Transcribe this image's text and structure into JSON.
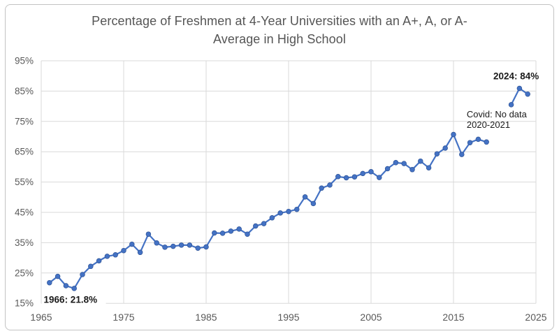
{
  "chart_data": {
    "type": "line",
    "title": "Percentage of Freshmen at 4-Year Universities with an A+, A, or A- Average in High School",
    "title_lines": [
      "Percentage of Freshmen at 4-Year Universities with an A+, A, or A-",
      "Average in High School"
    ],
    "xlabel": "",
    "ylabel": "",
    "xlim": [
      1965,
      2025
    ],
    "ylim": [
      15,
      95
    ],
    "grid": true,
    "legend": "none",
    "gap_years": [
      2020,
      2021
    ],
    "years": [
      1966,
      1967,
      1968,
      1969,
      1970,
      1971,
      1972,
      1973,
      1974,
      1975,
      1976,
      1977,
      1978,
      1979,
      1980,
      1981,
      1982,
      1983,
      1984,
      1985,
      1986,
      1987,
      1988,
      1989,
      1990,
      1991,
      1992,
      1993,
      1994,
      1995,
      1996,
      1997,
      1998,
      1999,
      2000,
      2001,
      2002,
      2003,
      2004,
      2005,
      2006,
      2007,
      2008,
      2009,
      2010,
      2011,
      2012,
      2013,
      2014,
      2015,
      2016,
      2017,
      2018,
      2019,
      2022,
      2023,
      2024
    ],
    "values": [
      21.8,
      23.9,
      20.8,
      19.9,
      24.5,
      27.2,
      29.0,
      30.5,
      31.0,
      32.4,
      34.5,
      31.8,
      37.8,
      34.9,
      33.5,
      33.8,
      34.2,
      34.2,
      33.2,
      33.6,
      38.2,
      38.1,
      38.8,
      39.5,
      37.8,
      40.5,
      41.3,
      43.2,
      44.8,
      45.3,
      46.0,
      50.1,
      47.9,
      53.0,
      54.0,
      56.8,
      56.4,
      56.7,
      57.8,
      58.4,
      56.5,
      59.4,
      61.4,
      61.1,
      59.1,
      61.9,
      59.7,
      64.3,
      66.2,
      70.7,
      64.1,
      68.0,
      69.1,
      68.2,
      80.5,
      85.9,
      84.0
    ],
    "yticks": [
      {
        "value": 95,
        "label": "95%"
      },
      {
        "value": 85,
        "label": "85%"
      },
      {
        "value": 75,
        "label": "75%"
      },
      {
        "value": 65,
        "label": "65%"
      },
      {
        "value": 55,
        "label": "55%"
      },
      {
        "value": 45,
        "label": "45%"
      },
      {
        "value": 35,
        "label": "35%"
      },
      {
        "value": 25,
        "label": "25%"
      },
      {
        "value": 15,
        "label": "15%"
      }
    ],
    "xticks": [
      {
        "value": 1965,
        "label": "1965"
      },
      {
        "value": 1975,
        "label": "1975"
      },
      {
        "value": 1985,
        "label": "1985"
      },
      {
        "value": 1995,
        "label": "1995"
      },
      {
        "value": 2005,
        "label": "2005"
      },
      {
        "value": 2015,
        "label": "2015"
      },
      {
        "value": 2025,
        "label": "2025"
      }
    ],
    "annotations": [
      {
        "name": "annotation-1966",
        "text": "1966: 21.8%",
        "bold": true,
        "year": 1965.3,
        "value": 16.2,
        "align": "start",
        "bg": true
      },
      {
        "name": "annotation-2024",
        "text": "2024: 84%",
        "bold": true,
        "year": 2022.6,
        "value": 89.9,
        "align": "middle",
        "bg": false
      },
      {
        "name": "annotation-covid-line-1",
        "text": "Covid: No data",
        "bold": false,
        "year": 2016.6,
        "value": 77.4,
        "align": "start",
        "bg": false
      },
      {
        "name": "annotation-covid-line-2",
        "text": "2020-2021",
        "bold": false,
        "year": 2016.6,
        "value": 73.9,
        "align": "start",
        "bg": false
      }
    ],
    "colors": {
      "line": "#4472C4",
      "marker": "#4472C4",
      "marker_edge": "#2E5395",
      "grid": "#D9D9D9",
      "axis_labels": "#595959",
      "title": "#555555",
      "annotation": "#1A1A1A",
      "card_border": "#C3C3C3"
    }
  }
}
